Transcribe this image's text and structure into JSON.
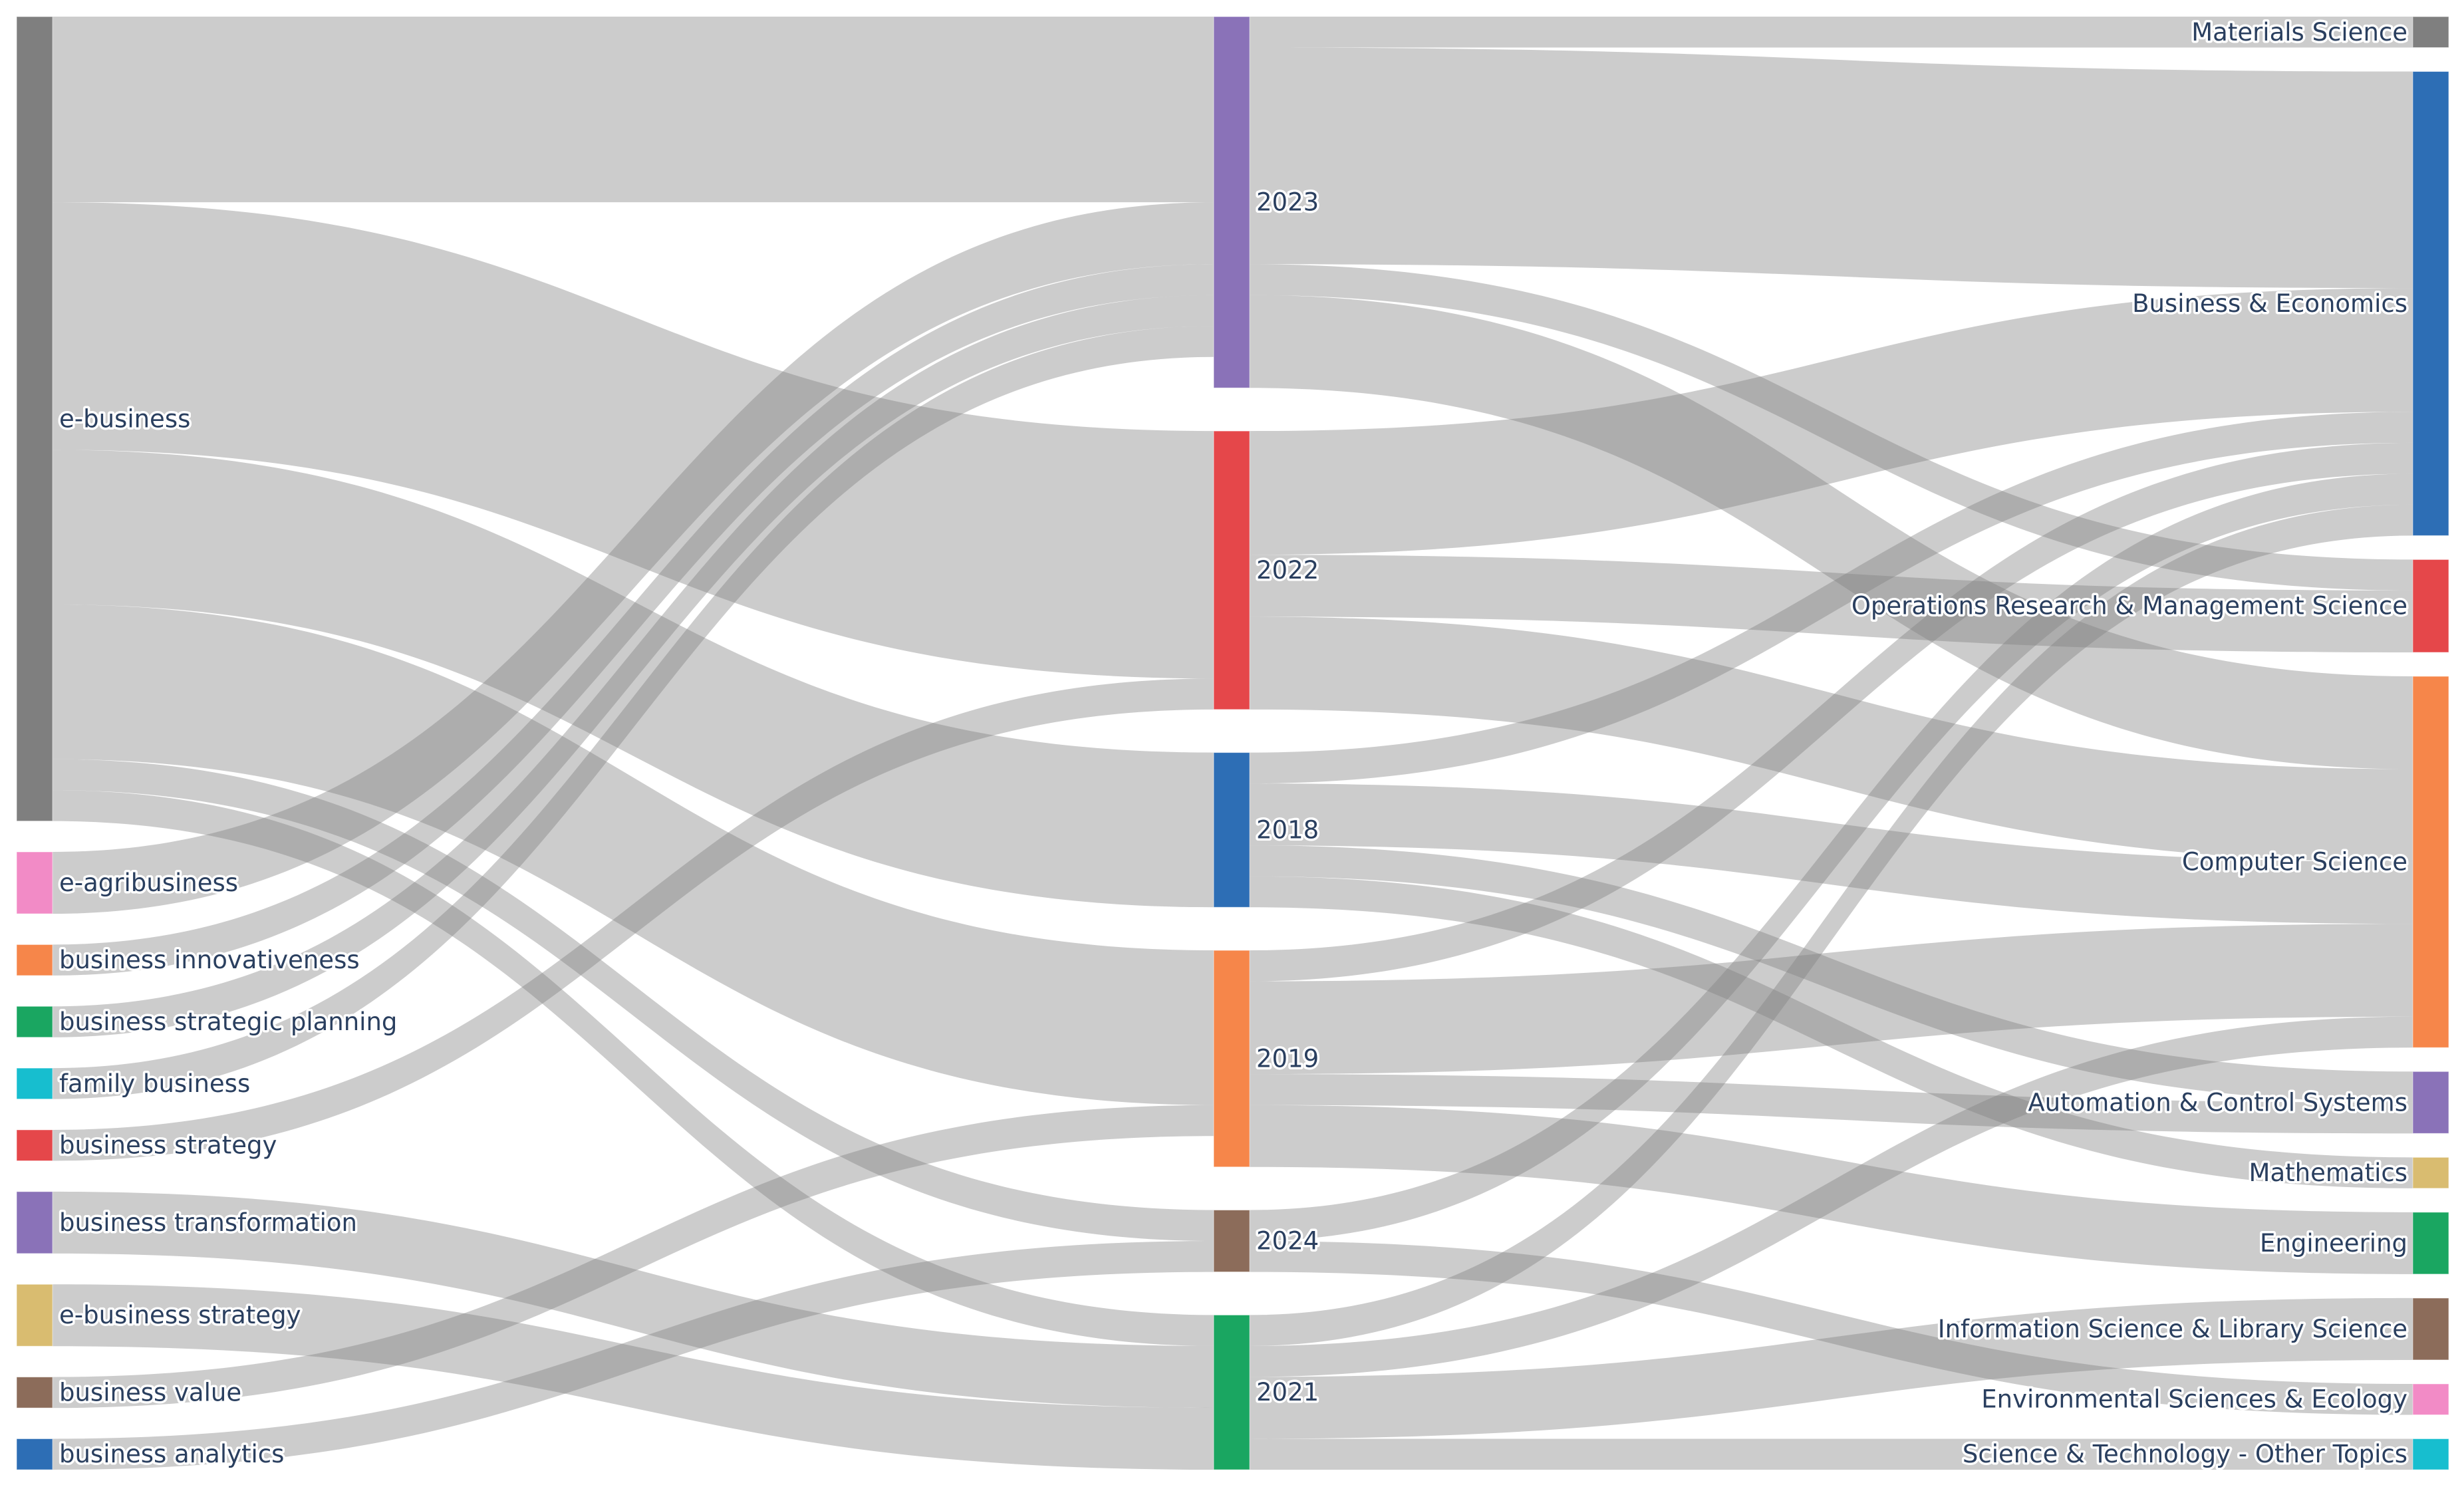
{
  "chart_data": {
    "type": "sankey",
    "colors": {
      "link": "#808080",
      "label": "#2a3f5f"
    },
    "nodes": [
      {
        "id": "e-business",
        "label": "e-business",
        "color": "#7f7f7f",
        "column": 0
      },
      {
        "id": "e-agribusiness",
        "label": "e-agribusiness",
        "color": "#f28bc6",
        "column": 0
      },
      {
        "id": "business innovativeness",
        "label": "business innovativeness",
        "color": "#f6864a",
        "column": 0
      },
      {
        "id": "business strategic planning",
        "label": "business strategic planning",
        "color": "#1aa661",
        "column": 0
      },
      {
        "id": "family business",
        "label": "family business",
        "color": "#17becf",
        "column": 0
      },
      {
        "id": "business strategy",
        "label": "business strategy",
        "color": "#e5474a",
        "column": 0
      },
      {
        "id": "business transformation",
        "label": "business transformation",
        "color": "#8a72b8",
        "column": 0
      },
      {
        "id": "e-business strategy",
        "label": "e-business strategy",
        "color": "#d9bc70",
        "column": 0
      },
      {
        "id": "business value",
        "label": "business value",
        "color": "#8c6c5a",
        "column": 0
      },
      {
        "id": "business analytics",
        "label": "business analytics",
        "color": "#2d6eb5",
        "column": 0
      },
      {
        "id": "2023",
        "label": "2023",
        "color": "#8a72b8",
        "column": 1
      },
      {
        "id": "2022",
        "label": "2022",
        "color": "#e5474a",
        "column": 1
      },
      {
        "id": "2018",
        "label": "2018",
        "color": "#2d6eb5",
        "column": 1
      },
      {
        "id": "2019",
        "label": "2019",
        "color": "#f6864a",
        "column": 1
      },
      {
        "id": "2024",
        "label": "2024",
        "color": "#8c6c5a",
        "column": 1
      },
      {
        "id": "2021",
        "label": "2021",
        "color": "#1aa661",
        "column": 1
      },
      {
        "id": "Materials Science",
        "label": "Materials Science",
        "color": "#7f7f7f",
        "column": 2
      },
      {
        "id": "Business & Economics",
        "label": "Business & Economics",
        "color": "#2d6eb5",
        "column": 2
      },
      {
        "id": "Operations Research & Management Science",
        "label": "Operations Research & Management Science",
        "color": "#e5474a",
        "column": 2
      },
      {
        "id": "Computer Science",
        "label": "Computer Science",
        "color": "#f6864a",
        "column": 2
      },
      {
        "id": "Automation & Control Systems",
        "label": "Automation & Control Systems",
        "color": "#8a72b8",
        "column": 2
      },
      {
        "id": "Mathematics",
        "label": "Mathematics",
        "color": "#d9bc70",
        "column": 2
      },
      {
        "id": "Engineering",
        "label": "Engineering",
        "color": "#1aa661",
        "column": 2
      },
      {
        "id": "Information Science & Library Science",
        "label": "Information Science & Library Science",
        "color": "#8c6c5a",
        "column": 2
      },
      {
        "id": "Environmental Sciences & Ecology",
        "label": "Environmental Sciences & Ecology",
        "color": "#f28bc6",
        "column": 2
      },
      {
        "id": "Science & Technology - Other Topics",
        "label": "Science & Technology - Other Topics",
        "color": "#17becf",
        "column": 2
      }
    ],
    "links": [
      {
        "source": "e-business",
        "target": "2023",
        "value": 12
      },
      {
        "source": "e-business",
        "target": "2022",
        "value": 16
      },
      {
        "source": "e-business",
        "target": "2018",
        "value": 10
      },
      {
        "source": "e-business",
        "target": "2019",
        "value": 10
      },
      {
        "source": "e-business",
        "target": "2024",
        "value": 2
      },
      {
        "source": "e-business",
        "target": "2021",
        "value": 2
      },
      {
        "source": "e-agribusiness",
        "target": "2023",
        "value": 4
      },
      {
        "source": "business innovativeness",
        "target": "2023",
        "value": 2
      },
      {
        "source": "business strategic planning",
        "target": "2023",
        "value": 2
      },
      {
        "source": "family business",
        "target": "2023",
        "value": 2
      },
      {
        "source": "business strategy",
        "target": "2022",
        "value": 2
      },
      {
        "source": "business transformation",
        "target": "2021",
        "value": 4
      },
      {
        "source": "e-business strategy",
        "target": "2021",
        "value": 4
      },
      {
        "source": "business value",
        "target": "2019",
        "value": 2
      },
      {
        "source": "business analytics",
        "target": "2024",
        "value": 2
      },
      {
        "source": "2023",
        "target": "Materials Science",
        "value": 2
      },
      {
        "source": "2023",
        "target": "Business & Economics",
        "value": 14
      },
      {
        "source": "2023",
        "target": "Operations Research & Management Science",
        "value": 2
      },
      {
        "source": "2023",
        "target": "Computer Science",
        "value": 6
      },
      {
        "source": "2022",
        "target": "Business & Economics",
        "value": 8
      },
      {
        "source": "2022",
        "target": "Operations Research & Management Science",
        "value": 4
      },
      {
        "source": "2022",
        "target": "Computer Science",
        "value": 6
      },
      {
        "source": "2018",
        "target": "Business & Economics",
        "value": 2
      },
      {
        "source": "2018",
        "target": "Computer Science",
        "value": 4
      },
      {
        "source": "2018",
        "target": "Automation & Control Systems",
        "value": 2
      },
      {
        "source": "2018",
        "target": "Mathematics",
        "value": 2
      },
      {
        "source": "2019",
        "target": "Business & Economics",
        "value": 2
      },
      {
        "source": "2019",
        "target": "Computer Science",
        "value": 6
      },
      {
        "source": "2019",
        "target": "Automation & Control Systems",
        "value": 2
      },
      {
        "source": "2019",
        "target": "Engineering",
        "value": 4
      },
      {
        "source": "2024",
        "target": "Business & Economics",
        "value": 2
      },
      {
        "source": "2024",
        "target": "Environmental Sciences & Ecology",
        "value": 2
      },
      {
        "source": "2021",
        "target": "Business & Economics",
        "value": 2
      },
      {
        "source": "2021",
        "target": "Computer Science",
        "value": 2
      },
      {
        "source": "2021",
        "target": "Information Science & Library Science",
        "value": 4
      },
      {
        "source": "2021",
        "target": "Science & Technology - Other Topics",
        "value": 2
      }
    ]
  }
}
